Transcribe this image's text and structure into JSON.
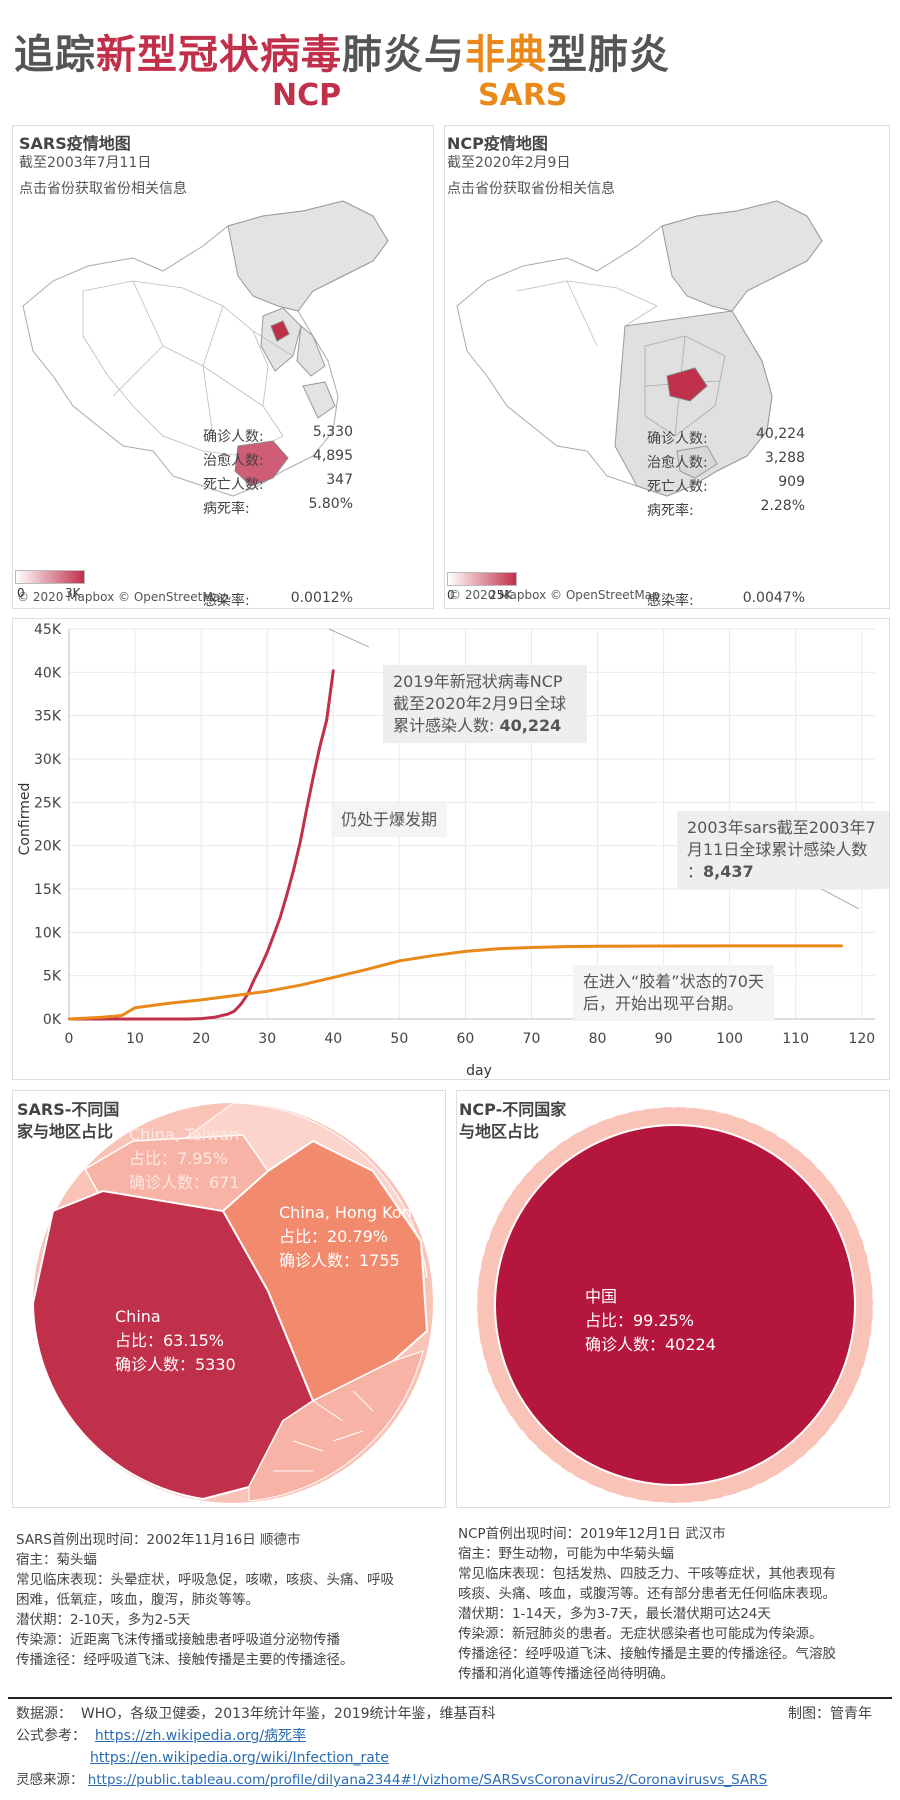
{
  "header": {
    "title_parts": [
      "追踪",
      "新型冠状病毒",
      "肺炎与",
      "非典",
      "型肺炎"
    ],
    "sub_ncp": "NCP",
    "sub_sars": "SARS"
  },
  "sars_map": {
    "title": "SARS疫情地图",
    "date": "截至2003年7月11日",
    "hint": "点击省份获取省份相关信息",
    "stats": [
      {
        "label": "确诊人数:",
        "value": "5,330"
      },
      {
        "label": "治愈人数:",
        "value": "4,895"
      },
      {
        "label": "死亡人数:",
        "value": "347"
      },
      {
        "label": "病死率:",
        "value": "5.80%"
      },
      {
        "label": "感染率:",
        "value": "0.0012%"
      }
    ],
    "legend_min": "0",
    "legend_max": "3K",
    "credit": "© 2020 Mapbox © OpenStreetMap"
  },
  "ncp_map": {
    "title": "NCP疫情地图",
    "date": "截至2020年2月9日",
    "hint": "点击省份获取省份相关信息",
    "stats": [
      {
        "label": "确诊人数:",
        "value": "40,224"
      },
      {
        "label": "治愈人数:",
        "value": "3,288"
      },
      {
        "label": "死亡人数:",
        "value": "909"
      },
      {
        "label": "病死率:",
        "value": "2.28%"
      },
      {
        "label": "感染率:",
        "value": "0.0047%"
      }
    ],
    "legend_min": "0",
    "legend_max": "25K",
    "credit": "© 2020 Mapbox © OpenStreetMap"
  },
  "line_annotations": {
    "ncp_box_l1": "2019年新冠状病毒NCP",
    "ncp_box_l2": "截至2020年2月9日全球",
    "ncp_box_l3": "累计感染人数: ",
    "ncp_box_val": "40,224",
    "outbreak": "仍处于爆发期",
    "sars_box_l1": "2003年sars截至2003年7",
    "sars_box_l2": "月11日全球累计感染人数",
    "sars_box_l3": "：",
    "sars_box_val": "8,437",
    "plateau_l1": "在进入“胶着”状态的70天",
    "plateau_l2": "后，开始出现平台期。"
  },
  "sars_pie": {
    "title_l1": "SARS-不同国",
    "title_l2": "家与地区占比",
    "slices": [
      {
        "name": "China",
        "share_text": "占比：63.15%",
        "count_text": "确诊人数：5330"
      },
      {
        "name": "China, Hong Kong",
        "share_text": "占比：20.79%",
        "count_text": "确诊人数：1755"
      },
      {
        "name": "China, Taiwan",
        "share_text": "占比：7.95%",
        "count_text": "确诊人数：671"
      }
    ]
  },
  "ncp_pie": {
    "title_l1": "NCP-不同国家",
    "title_l2": "与地区占比",
    "slices": [
      {
        "name": "中国",
        "share_text": "占比：99.25%",
        "count_text": "确诊人数：40224"
      }
    ]
  },
  "sars_info": [
    "SARS首例出现时间：2002年11月16日  顺德市",
    "宿主：菊头蝠",
    "常见临床表现：头晕症状，呼吸急促，咳嗽，咳痰、头痛、呼吸",
    "困难，低氧症，咳血，腹泻，肺炎等等。",
    "潜伏期：2-10天，多为2-5天",
    "传染源：近距离飞沫传播或接触患者呼吸道分泌物传播",
    "传播途径：经呼吸道飞沫、接触传播是主要的传播途径。"
  ],
  "ncp_info": [
    "NCP首例出现时间：2019年12月1日  武汉市",
    "宿主：野生动物，可能为中华菊头蝠",
    "常见临床表现：包括发热、四肢乏力、干咳等症状，其他表现有",
    "咳痰、头痛、咳血，或腹泻等。还有部分患者无任何临床表现。",
    "潜伏期：1-14天，多为3-7天，最长潜伏期可达24天",
    "传染源：新冠肺炎的患者。无症状感染者也可能成为传染源。",
    "传播途径：经呼吸道飞沫、接触传播是主要的传播途径。气溶胶",
    "传播和消化道等传播途径尚待明确。"
  ],
  "footer": {
    "sources_label": "数据源：",
    "sources": "WHO，各级卫健委，2013年统计年鉴，2019统计年鉴，维基百科",
    "maker": "制图：管青年",
    "formula_label": "公式参考：",
    "link1": "https://zh.wikipedia.org/病死率",
    "link2": "https://en.wikipedia.org/wiki/Infection_rate",
    "inspire_label": "灵感来源：",
    "link3": "https://public.tableau.com/profile/dilyana2344#!/vizhome/SARSvsCoronavirus2/Coronavirusvs_SARS"
  },
  "colors": {
    "ncp": "#c0304a",
    "sars": "#e8891a",
    "ncp_dark": "#b5163e",
    "hk": "#f28b6e",
    "pale": "#f9c3b8"
  },
  "chart_data": [
    {
      "type": "line",
      "title": "",
      "xlabel": "day",
      "ylabel": "Confirmed",
      "xlim": [
        0,
        122
      ],
      "ylim": [
        0,
        45000
      ],
      "x_ticks": [
        0,
        10,
        20,
        30,
        40,
        50,
        60,
        70,
        80,
        90,
        100,
        110,
        120
      ],
      "y_ticks": [
        0,
        5000,
        10000,
        15000,
        20000,
        25000,
        30000,
        35000,
        40000,
        45000
      ],
      "y_tick_labels": [
        "0K",
        "5K",
        "10K",
        "15K",
        "20K",
        "25K",
        "30K",
        "35K",
        "40K",
        "45K"
      ],
      "grid": true,
      "series": [
        {
          "color": "#c0304a",
          "x": [
            0,
            2,
            4,
            6,
            14,
            16,
            18,
            20,
            22,
            24,
            25,
            26,
            27,
            28,
            29,
            30,
            31,
            32,
            33,
            34,
            35,
            36,
            37,
            38,
            39,
            40
          ],
          "y": [
            0,
            0,
            0,
            0,
            0,
            0,
            0,
            50,
            200,
            550,
            900,
            1700,
            2800,
            4500,
            6000,
            7700,
            9700,
            11800,
            14400,
            17200,
            20400,
            24300,
            28000,
            31500,
            34500,
            40224
          ]
        },
        {
          "color": "#e8891a",
          "x": [
            0,
            5,
            8,
            10,
            12,
            15,
            20,
            25,
            30,
            35,
            40,
            45,
            50,
            55,
            60,
            65,
            70,
            75,
            80,
            90,
            100,
            110,
            117
          ],
          "y": [
            0,
            200,
            400,
            1300,
            1500,
            1800,
            2200,
            2700,
            3200,
            3900,
            4800,
            5700,
            6700,
            7300,
            7800,
            8100,
            8250,
            8350,
            8400,
            8420,
            8430,
            8435,
            8437
          ]
        }
      ]
    },
    {
      "type": "pie",
      "title": "SARS-不同国家与地区占比",
      "slices": [
        {
          "name": "China",
          "value": 63.15,
          "count": 5330
        },
        {
          "name": "China, Hong Kong",
          "value": 20.79,
          "count": 1755
        },
        {
          "name": "China, Taiwan",
          "value": 7.95,
          "count": 671
        }
      ]
    },
    {
      "type": "pie",
      "title": "NCP-不同国家与地区占比",
      "slices": [
        {
          "name": "中国",
          "value": 99.25,
          "count": 40224
        }
      ]
    }
  ]
}
